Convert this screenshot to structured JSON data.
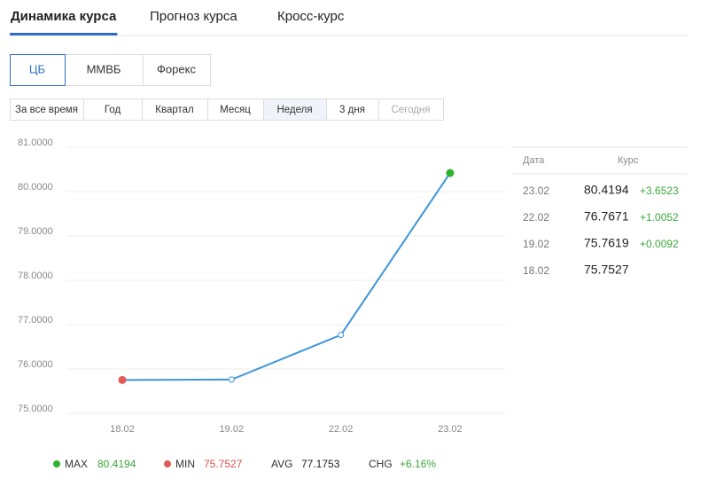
{
  "tabs": [
    "Динамика курса",
    "Прогноз курса",
    "Кросс-курс"
  ],
  "sources": [
    "ЦБ",
    "ММВБ",
    "Форекс"
  ],
  "periods": [
    "За все время",
    "Год",
    "Квартал",
    "Месяц",
    "Неделя",
    "3 дня",
    "Сегодня"
  ],
  "selected": {
    "tab": 0,
    "source": 0,
    "period": 4
  },
  "chart_data": {
    "type": "line",
    "categories": [
      "18.02",
      "19.02",
      "22.02",
      "23.02"
    ],
    "values": [
      75.7527,
      75.7619,
      76.7671,
      80.4194
    ],
    "color": "#3d95d8",
    "highlight_colors": {
      "max": "#2cb22c",
      "min": "#e35a57"
    },
    "ylim": [
      75,
      81
    ],
    "yticks": [
      {
        "value": 75,
        "label": "75.0000"
      },
      {
        "value": 76,
        "label": "76.0000"
      },
      {
        "value": 77,
        "label": "77.0000"
      },
      {
        "value": 78,
        "label": "78.0000"
      },
      {
        "value": 79,
        "label": "79.0000"
      },
      {
        "value": 80,
        "label": "80.0000"
      },
      {
        "value": 81,
        "label": "81.0000"
      }
    ],
    "grid": true
  },
  "table": {
    "header": [
      "Дата",
      "Курс"
    ],
    "rows": [
      [
        "23.02",
        "80.4194",
        "+3.6523"
      ],
      [
        "22.02",
        "76.7671",
        "+1.0052"
      ],
      [
        "19.02",
        "75.7619",
        "+0.0092"
      ],
      [
        "18.02",
        "75.7527"
      ]
    ]
  },
  "stats": [
    {
      "label": "MAX",
      "value": "80.4194"
    },
    {
      "label": "MIN",
      "value": "75.7527"
    },
    {
      "label": "AVG",
      "value": "77.1753"
    },
    {
      "label": "CHG",
      "value": "+6.16%"
    }
  ]
}
